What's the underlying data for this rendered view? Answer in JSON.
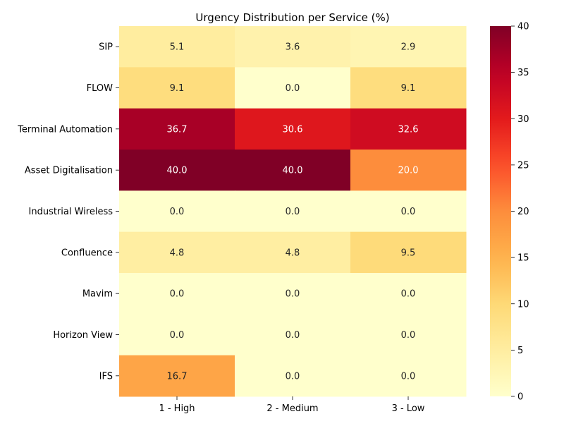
{
  "chart_data": {
    "type": "heatmap",
    "title": "Urgency Distribution per Service (%)",
    "xlabel": "",
    "ylabel": "",
    "columns": [
      "1 - High",
      "2 - Medium",
      "3 - Low"
    ],
    "rows": [
      "SIP",
      "FLOW",
      "Terminal Automation",
      "Asset Digitalisation",
      "Industrial Wireless",
      "Confluence",
      "Mavim",
      "Horizon View",
      "IFS"
    ],
    "values": [
      [
        5.1,
        3.6,
        2.9
      ],
      [
        9.1,
        0.0,
        9.1
      ],
      [
        36.7,
        30.6,
        32.6
      ],
      [
        40.0,
        40.0,
        20.0
      ],
      [
        0.0,
        0.0,
        0.0
      ],
      [
        4.8,
        4.8,
        9.5
      ],
      [
        0.0,
        0.0,
        0.0
      ],
      [
        0.0,
        0.0,
        0.0
      ],
      [
        16.7,
        0.0,
        0.0
      ]
    ],
    "colorbar": {
      "min": 0,
      "max": 40,
      "ticks": [
        0,
        5,
        10,
        15,
        20,
        25,
        30,
        35,
        40
      ],
      "colormap": "YlOrRd"
    },
    "annotation_format": "0.1f"
  }
}
